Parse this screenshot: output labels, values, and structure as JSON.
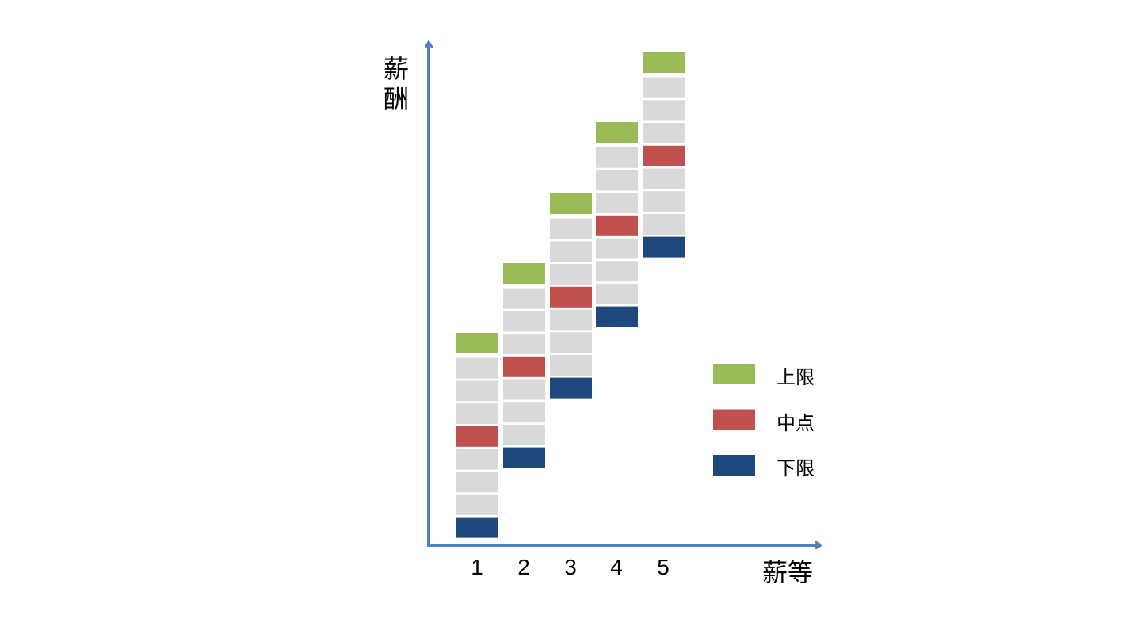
{
  "axes": {
    "y_label": "薪酬",
    "x_label": "薪等",
    "color": "#4f81bd"
  },
  "grades": [
    {
      "label": "1"
    },
    {
      "label": "2"
    },
    {
      "label": "3"
    },
    {
      "label": "4"
    },
    {
      "label": "5"
    }
  ],
  "steps_per_grade": [
    "max",
    "step",
    "step",
    "step",
    "mid",
    "step",
    "step",
    "step",
    "min"
  ],
  "colors": {
    "max": "#9bbb59",
    "mid": "#c0504d",
    "min": "#1f497d",
    "step": "#d9d9d9"
  },
  "legend": [
    {
      "key": "max",
      "label": "上限"
    },
    {
      "key": "mid",
      "label": "中点"
    },
    {
      "key": "min",
      "label": "下限"
    }
  ]
}
